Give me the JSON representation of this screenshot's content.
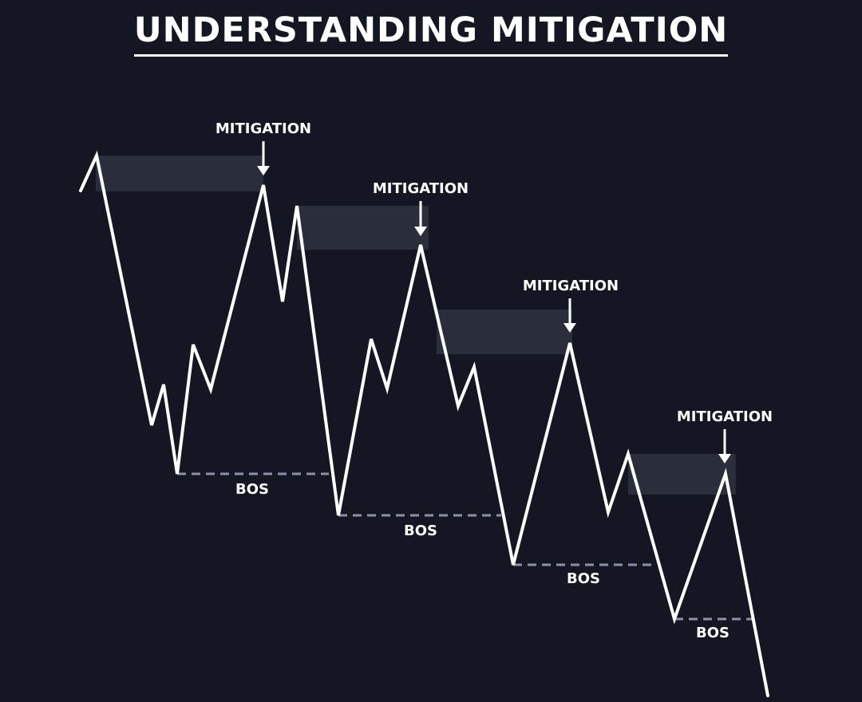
{
  "title": "UNDERSTANDING MITIGATION",
  "mitigation_label": "MITIGATION",
  "bos_label": "BOS",
  "colors": {
    "background": "#141722",
    "price_line": "#ffffff",
    "zone_fill": "#2a2d3a",
    "bos_line": "#8d90a6",
    "text": "#ffffff"
  }
}
